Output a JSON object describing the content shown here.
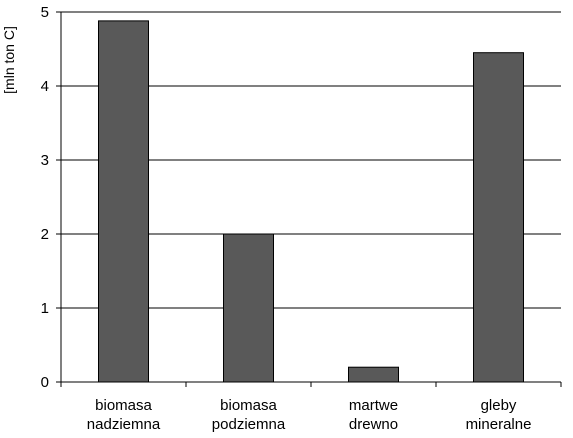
{
  "chart_data": {
    "type": "bar",
    "categories": [
      [
        "biomasa",
        "nadziemna"
      ],
      [
        "biomasa",
        "podziemna"
      ],
      [
        "martwe",
        "drewno"
      ],
      [
        "gleby",
        "mineralne"
      ]
    ],
    "values": [
      4.88,
      2.0,
      0.2,
      4.45
    ],
    "ylabel": "[mln ton C]",
    "ylim": [
      0,
      5
    ],
    "yticks": [
      0,
      1,
      2,
      3,
      4,
      5
    ],
    "grid": true,
    "bar_color": "#595959",
    "grid_color": "#000000"
  }
}
